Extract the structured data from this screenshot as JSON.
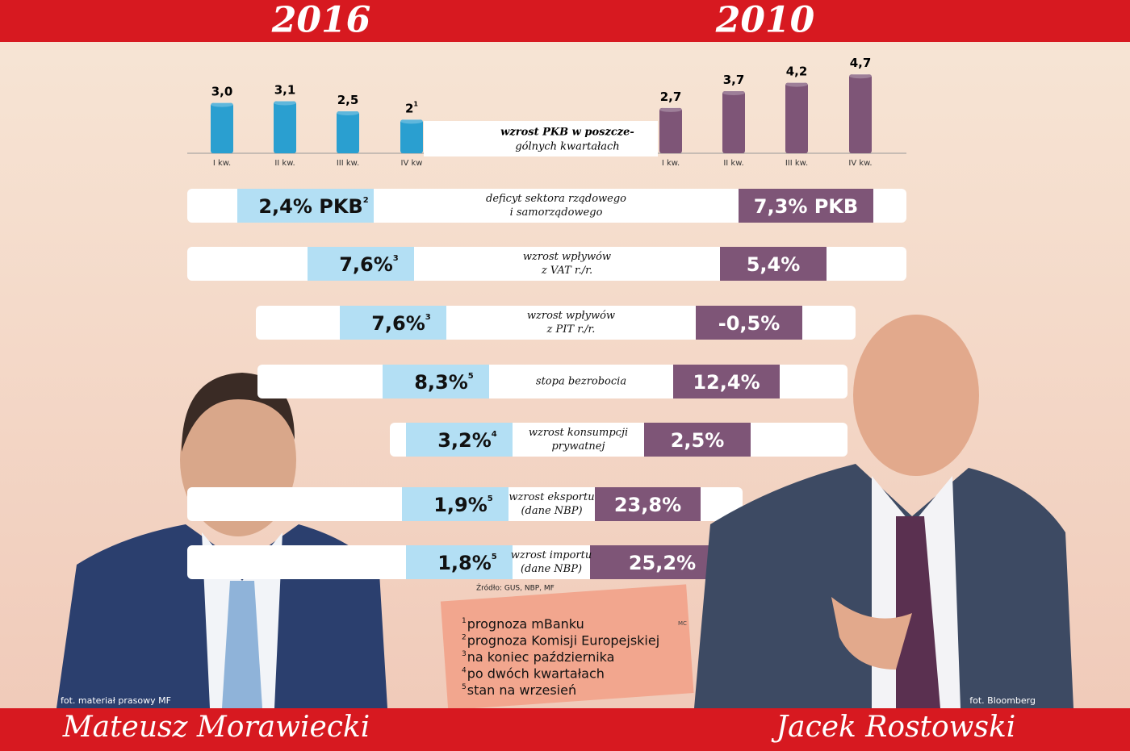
{
  "header": {
    "left_year": "2016",
    "right_year": "2010"
  },
  "chart_data": [
    {
      "type": "bar",
      "categories": [
        "I kw.",
        "II kw.",
        "III kw.",
        "IV kw"
      ],
      "values": [
        3.0,
        3.1,
        2.5,
        2
      ],
      "value_labels": [
        "3,0",
        "3,1",
        "2,5",
        "2"
      ],
      "value_note_marks": [
        null,
        null,
        null,
        "1"
      ],
      "color": "#2a9fd0"
    },
    {
      "type": "bar",
      "categories": [
        "I kw.",
        "II kw.",
        "III kw.",
        "IV kw."
      ],
      "values": [
        2.7,
        3.7,
        4.2,
        4.7
      ],
      "value_labels": [
        "2,7",
        "3,7",
        "4,2",
        "4,7"
      ],
      "color": "#7e5577"
    }
  ],
  "gdp_label": [
    "wzrost PKB w poszcze-",
    "gólnych kwartałach"
  ],
  "rows": [
    {
      "label": [
        "deficyt sektora rządowego",
        "i samorządowego"
      ],
      "left": "2,4% PKB",
      "left_note": "2",
      "right": "7,3% PKB"
    },
    {
      "label": [
        "wzrost wpływów",
        "z VAT r./r."
      ],
      "left": "7,6%",
      "left_note": "3",
      "right": "5,4%"
    },
    {
      "label": [
        "wzrost wpływów",
        "z PIT r./r."
      ],
      "left": "7,6%",
      "left_note": "3",
      "right": "-0,5%"
    },
    {
      "label": [
        "stopa bezrobocia"
      ],
      "left": "8,3%",
      "left_note": "5",
      "right": "12,4%"
    },
    {
      "label": [
        "wzrost konsumpcji",
        "prywatnej"
      ],
      "left": "3,2%",
      "left_note": "4",
      "right": "2,5%"
    },
    {
      "label": [
        "wzrost eksportu",
        "(dane NBP)"
      ],
      "left": "1,9%",
      "left_note": "5",
      "right": "23,8%"
    },
    {
      "label": [
        "wzrost importu",
        "(dane NBP)"
      ],
      "left": "1,8%",
      "left_note": "5",
      "right": "25,2%"
    }
  ],
  "source": "Źródło: GUS, NBP, MF",
  "footnotes": [
    {
      "mark": "1",
      "text": "prognoza mBanku"
    },
    {
      "mark": "2",
      "text": "prognoza Komisji Europejskiej"
    },
    {
      "mark": "3",
      "text": "na koniec października"
    },
    {
      "mark": "4",
      "text": "po dwóch kwartałach"
    },
    {
      "mark": "5",
      "text": "stan na wrzesień"
    }
  ],
  "author": "MC",
  "photo_credits": {
    "left": "fot. materiał prasowy MF",
    "right": "fot. Bloomberg"
  },
  "names": {
    "left": "Mateusz Morawiecki",
    "right": "Jacek Rostowski"
  }
}
